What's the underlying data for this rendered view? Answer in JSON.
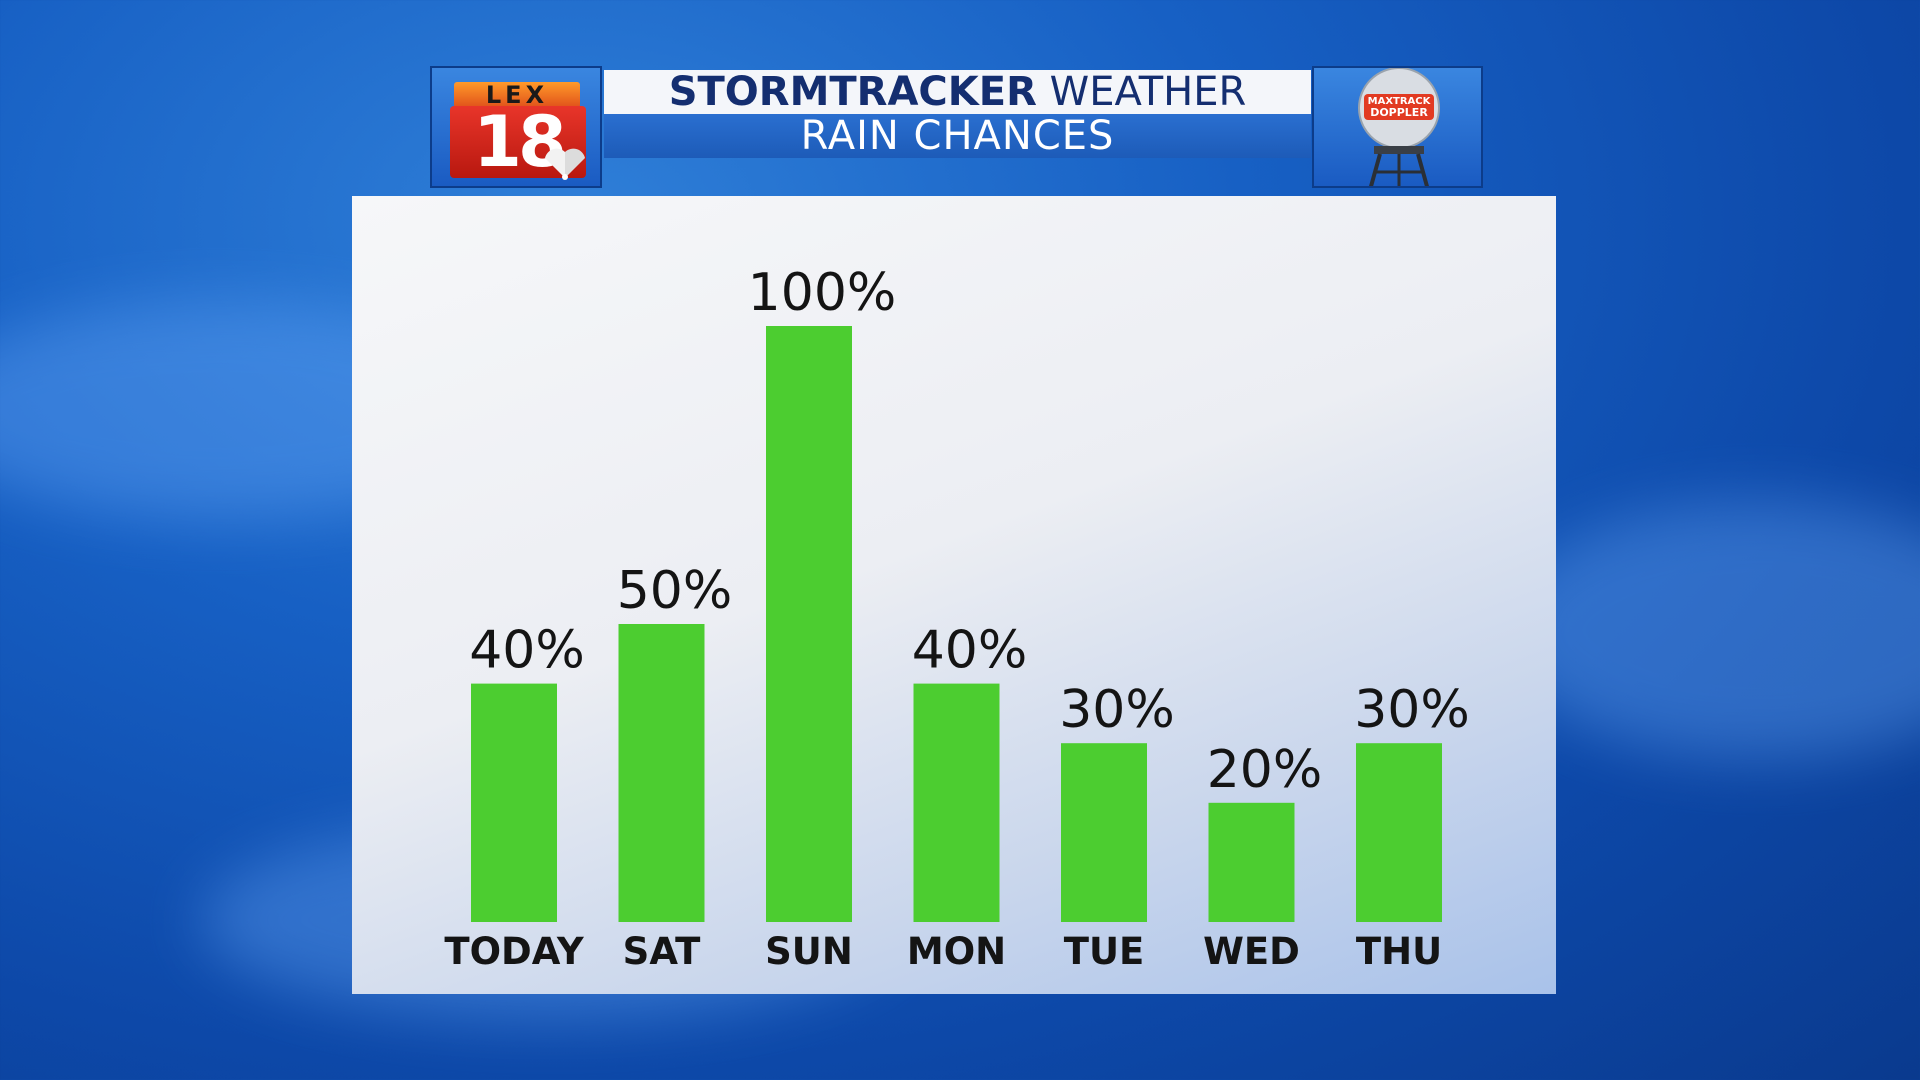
{
  "header": {
    "logo_top_text": "LEX",
    "logo_number": "18",
    "title_bold": "STORMTRACKER",
    "title_regular": "WEATHER",
    "subtitle": "RAIN CHANCES",
    "radar_badge_line1": "MAXTRACK",
    "radar_badge_line2": "DOPPLER",
    "logo_icon": "nbc-peacock-icon",
    "radar_icon": "doppler-radar-tower-icon"
  },
  "colors": {
    "bar": "#4ccd30",
    "text": "#141414",
    "background": "#1760c4"
  },
  "chart_data": {
    "type": "bar",
    "categories": [
      "TODAY",
      "SAT",
      "SUN",
      "MON",
      "TUE",
      "WED",
      "THU"
    ],
    "values": [
      40,
      50,
      100,
      40,
      30,
      20,
      30
    ],
    "data_labels": [
      "40%",
      "50%",
      "100%",
      "40%",
      "30%",
      "20%",
      "30%"
    ],
    "ylim": [
      0,
      100
    ],
    "grid": false,
    "legend": "none"
  }
}
